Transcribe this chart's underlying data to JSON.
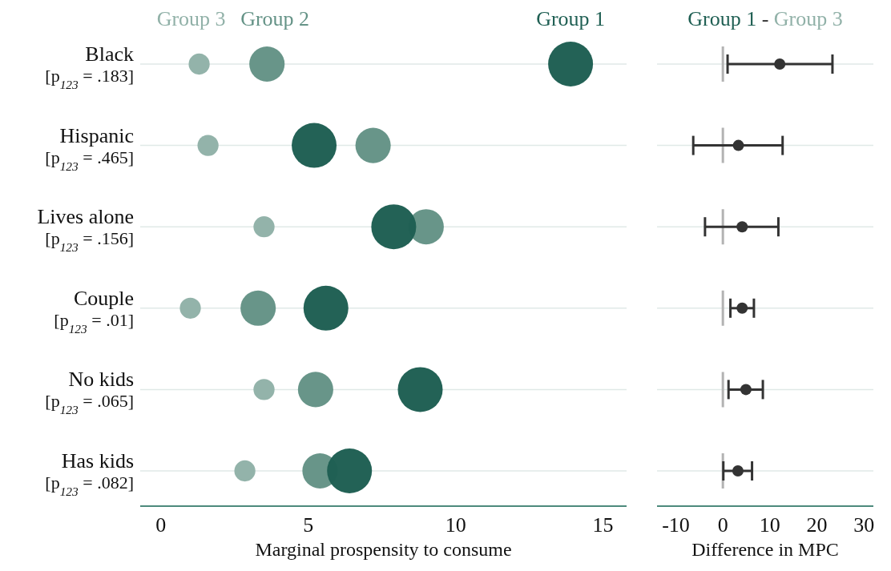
{
  "chart_data": [
    {
      "type": "bubble",
      "xlabel": "Marginal prospensity to consume",
      "categories": [
        "Black [p$_{123}$ = .183]",
        "Hispanic [p$_{123}$ = .465]",
        "Lives alone [p$_{123}$ = .156]",
        "Couple [p$_{123}$ = .01]",
        "No kids [p$_{123}$ = .065]",
        "Has kids [p$_{123}$ = .082]"
      ],
      "orientation": "horizontal",
      "xlim": [
        -0.7,
        15.8
      ],
      "xticks": [
        0,
        5,
        10,
        15
      ],
      "grid": "y",
      "legend": "top",
      "series": [
        {
          "name": "Group 3",
          "color": "#91b1a8",
          "values": [
            1.3,
            1.6,
            3.5,
            1.0,
            3.5,
            2.85
          ],
          "sizes": [
            0.22,
            0.22,
            0.22,
            0.22,
            0.22,
            0.22
          ]
        },
        {
          "name": "Group 2",
          "color": "#659387",
          "values": [
            3.6,
            7.2,
            9.0,
            3.3,
            5.25,
            5.4
          ],
          "sizes": [
            0.62,
            0.62,
            0.62,
            0.62,
            0.62,
            0.62
          ]
        },
        {
          "name": "Group 1",
          "color": "#1f5f53",
          "values": [
            13.9,
            5.2,
            7.9,
            5.6,
            8.8,
            6.4
          ],
          "sizes": [
            1,
            1,
            1,
            1,
            1,
            1
          ]
        }
      ]
    },
    {
      "type": "scatter",
      "title": "Group 1 - Group 3",
      "xlabel": "Difference in MPC",
      "categories": [
        null,
        null,
        null,
        null,
        null,
        null
      ],
      "orientation": "horizontal",
      "xlim": [
        -14,
        32
      ],
      "xticks": [
        -10,
        0,
        10,
        20,
        30
      ],
      "grid": "y",
      "tick_labels": "x",
      "ref_lines": [
        {
          "axis": "x",
          "value": 0,
          "color": "#b3b3b3"
        }
      ],
      "series": [
        {
          "color": "#333333",
          "marker": "circle",
          "values": [
            12.1,
            3.3,
            4.1,
            4.1,
            4.9,
            3.2
          ],
          "errors": [
            [
              1.0,
              23.3
            ],
            [
              -6.3,
              12.7
            ],
            [
              -3.8,
              11.8
            ],
            [
              1.6,
              6.6
            ],
            [
              1.2,
              8.5
            ],
            [
              0.1,
              6.2
            ]
          ]
        }
      ]
    }
  ]
}
